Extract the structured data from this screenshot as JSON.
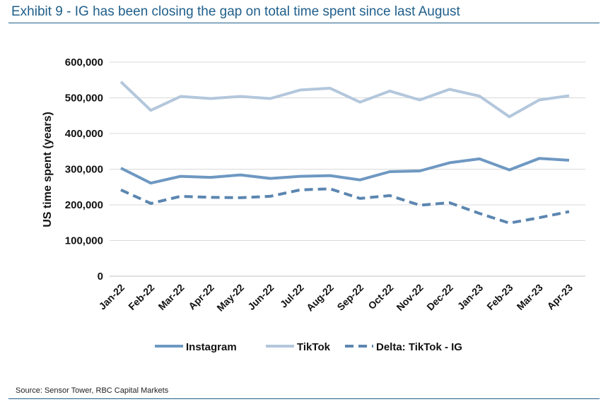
{
  "header": {
    "title": "Exhibit 9 - IG has been closing the gap on total time spent since last August"
  },
  "footer": {
    "source": "Source: Sensor Tower, RBC Capital Markets"
  },
  "colors": {
    "title": "#1f5f8b",
    "instagram": "#6e98c2",
    "tiktok": "#b3c7dc",
    "delta": "#5b86b0",
    "grid": "#d9d9d9"
  },
  "chart_data": {
    "type": "line",
    "title": "Exhibit 9 - IG has been closing the gap on total time spent since last August",
    "xlabel": "",
    "ylabel": "US time spent (years)",
    "ylim": [
      0,
      600000
    ],
    "yticks": [
      0,
      100000,
      200000,
      300000,
      400000,
      500000,
      600000
    ],
    "ytick_labels": [
      "0",
      "100,000",
      "200,000",
      "300,000",
      "400,000",
      "500,000",
      "600,000"
    ],
    "grid": true,
    "legend": "bottom",
    "categories": [
      "Jan-22",
      "Feb-22",
      "Mar-22",
      "Apr-22",
      "May-22",
      "Jun-22",
      "Jul-22",
      "Aug-22",
      "Sep-22",
      "Oct-22",
      "Nov-22",
      "Dec-22",
      "Jan-23",
      "Feb-23",
      "Mar-23",
      "Apr-23"
    ],
    "series": [
      {
        "name": "Instagram",
        "style": "solid",
        "color": "#6e98c2",
        "values": [
          303000,
          261000,
          280000,
          277000,
          284000,
          274000,
          280000,
          282000,
          270000,
          293000,
          295000,
          318000,
          329000,
          298000,
          330000,
          325000
        ]
      },
      {
        "name": "TikTok",
        "style": "solid",
        "color": "#b3c7dc",
        "values": [
          545000,
          465000,
          504000,
          498000,
          504000,
          498000,
          522000,
          527000,
          488000,
          519000,
          494000,
          524000,
          505000,
          447000,
          494000,
          506000
        ]
      },
      {
        "name": "Delta: TikTok - IG",
        "style": "dashed",
        "color": "#5b86b0",
        "values": [
          242000,
          204000,
          224000,
          221000,
          220000,
          224000,
          242000,
          245000,
          218000,
          226000,
          199000,
          206000,
          176000,
          149000,
          164000,
          181000
        ]
      }
    ]
  }
}
